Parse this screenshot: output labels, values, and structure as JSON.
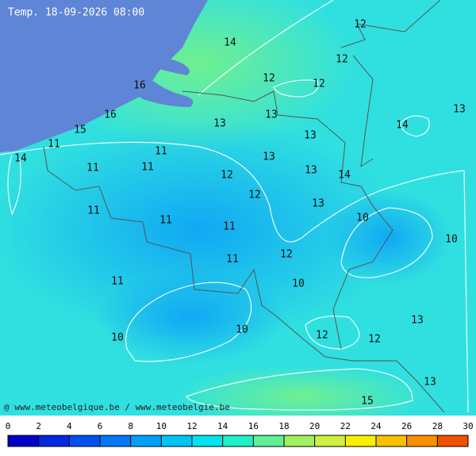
{
  "title": "Temp. 18-09-2026 08:00",
  "credit": "@ www.meteobelgique.be / www.meteobelgie.be",
  "labels": [
    12,
    14,
    12,
    16,
    12,
    12,
    13,
    16,
    13,
    14,
    13,
    15,
    13,
    11,
    11,
    13,
    14,
    11,
    11,
    13,
    14,
    12,
    12,
    13,
    11,
    10,
    11,
    11,
    10,
    12,
    11,
    11,
    10,
    13,
    10,
    12,
    12,
    10,
    13,
    15
  ],
  "colorbar": {
    "ticks": [
      0,
      2,
      4,
      6,
      8,
      10,
      12,
      14,
      16,
      18,
      20,
      22,
      24,
      26,
      28,
      30
    ],
    "colors": [
      "#0000c8",
      "#0028e0",
      "#0050f0",
      "#0078f8",
      "#00a0f8",
      "#00c4f8",
      "#00e4f0",
      "#20f0c8",
      "#60f098",
      "#a0f060",
      "#d0f040",
      "#f8f000",
      "#f8c000",
      "#f89000",
      "#f05000"
    ]
  }
}
